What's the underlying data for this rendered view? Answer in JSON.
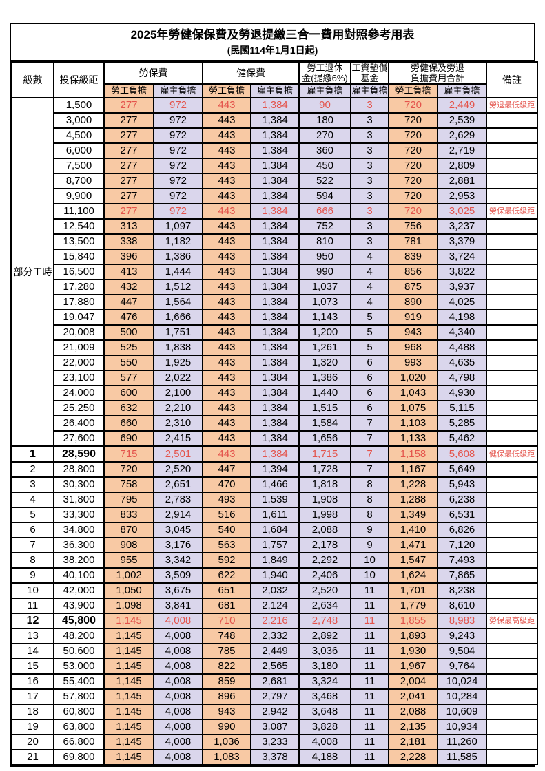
{
  "page": {
    "title": "2025年勞健保保費及勞退提繳三合一費用對照參考用表",
    "subtitle": "(民國114年1月1日起)"
  },
  "colors": {
    "employee_column_bg": "#F8C9A4",
    "employer_column_bg": "#DAD6EC",
    "highlight_text": "#E4544C",
    "grid_border": "#000000"
  },
  "table": {
    "header": {
      "level": "級數",
      "salary": "投保級距",
      "labor": "勞保費",
      "health": "健保費",
      "pension_line1": "勞工退休",
      "pension_line2": "金(提繳6%)",
      "fund_line1": "工資墊償",
      "fund_line2": "基金",
      "total_line1": "勞健保及勞退",
      "total_line2": "負擔費用合計",
      "note": "備註",
      "employee": "勞工負擔",
      "employer": "雇主負擔"
    },
    "part_time_label": "部分工時",
    "part_time_rowspan": 23,
    "rows": [
      {
        "c": [
          "",
          "1,500",
          "277",
          "972",
          "443",
          "1,384",
          "90",
          "3",
          "720",
          "2,449"
        ],
        "note": "勞退最低級距",
        "red": true
      },
      {
        "c": [
          "",
          "3,000",
          "277",
          "972",
          "443",
          "1,384",
          "180",
          "3",
          "720",
          "2,539"
        ]
      },
      {
        "c": [
          "",
          "4,500",
          "277",
          "972",
          "443",
          "1,384",
          "270",
          "3",
          "720",
          "2,629"
        ]
      },
      {
        "c": [
          "",
          "6,000",
          "277",
          "972",
          "443",
          "1,384",
          "360",
          "3",
          "720",
          "2,719"
        ]
      },
      {
        "c": [
          "",
          "7,500",
          "277",
          "972",
          "443",
          "1,384",
          "450",
          "3",
          "720",
          "2,809"
        ]
      },
      {
        "c": [
          "",
          "8,700",
          "277",
          "972",
          "443",
          "1,384",
          "522",
          "3",
          "720",
          "2,881"
        ]
      },
      {
        "c": [
          "",
          "9,900",
          "277",
          "972",
          "443",
          "1,384",
          "594",
          "3",
          "720",
          "2,953"
        ]
      },
      {
        "c": [
          "",
          "11,100",
          "277",
          "972",
          "443",
          "1,384",
          "666",
          "3",
          "720",
          "3,025"
        ],
        "note": "勞保最低級距",
        "red": true
      },
      {
        "c": [
          "",
          "12,540",
          "313",
          "1,097",
          "443",
          "1,384",
          "752",
          "3",
          "756",
          "3,237"
        ]
      },
      {
        "c": [
          "",
          "13,500",
          "338",
          "1,182",
          "443",
          "1,384",
          "810",
          "3",
          "781",
          "3,379"
        ]
      },
      {
        "c": [
          "",
          "15,840",
          "396",
          "1,386",
          "443",
          "1,384",
          "950",
          "4",
          "839",
          "3,724"
        ]
      },
      {
        "c": [
          "",
          "16,500",
          "413",
          "1,444",
          "443",
          "1,384",
          "990",
          "4",
          "856",
          "3,822"
        ]
      },
      {
        "c": [
          "",
          "17,280",
          "432",
          "1,512",
          "443",
          "1,384",
          "1,037",
          "4",
          "875",
          "3,937"
        ]
      },
      {
        "c": [
          "",
          "17,880",
          "447",
          "1,564",
          "443",
          "1,384",
          "1,073",
          "4",
          "890",
          "4,025"
        ]
      },
      {
        "c": [
          "",
          "19,047",
          "476",
          "1,666",
          "443",
          "1,384",
          "1,143",
          "5",
          "919",
          "4,198"
        ]
      },
      {
        "c": [
          "",
          "20,008",
          "500",
          "1,751",
          "443",
          "1,384",
          "1,200",
          "5",
          "943",
          "4,340"
        ]
      },
      {
        "c": [
          "",
          "21,009",
          "525",
          "1,838",
          "443",
          "1,384",
          "1,261",
          "5",
          "968",
          "4,488"
        ]
      },
      {
        "c": [
          "",
          "22,000",
          "550",
          "1,925",
          "443",
          "1,384",
          "1,320",
          "6",
          "993",
          "4,635"
        ]
      },
      {
        "c": [
          "",
          "23,100",
          "577",
          "2,022",
          "443",
          "1,384",
          "1,386",
          "6",
          "1,020",
          "4,798"
        ]
      },
      {
        "c": [
          "",
          "24,000",
          "600",
          "2,100",
          "443",
          "1,384",
          "1,440",
          "6",
          "1,043",
          "4,930"
        ]
      },
      {
        "c": [
          "",
          "25,250",
          "632",
          "2,210",
          "443",
          "1,384",
          "1,515",
          "6",
          "1,075",
          "5,115"
        ]
      },
      {
        "c": [
          "",
          "26,400",
          "660",
          "2,310",
          "443",
          "1,384",
          "1,584",
          "7",
          "1,103",
          "5,285"
        ]
      },
      {
        "c": [
          "",
          "27,600",
          "690",
          "2,415",
          "443",
          "1,384",
          "1,656",
          "7",
          "1,133",
          "5,462"
        ]
      },
      {
        "c": [
          "1",
          "28,590",
          "715",
          "2,501",
          "443",
          "1,384",
          "1,715",
          "7",
          "1,158",
          "5,608"
        ],
        "note": "健保最低級距",
        "red": true,
        "bold": true,
        "thick": true
      },
      {
        "c": [
          "2",
          "28,800",
          "720",
          "2,520",
          "447",
          "1,394",
          "1,728",
          "7",
          "1,167",
          "5,649"
        ]
      },
      {
        "c": [
          "3",
          "30,300",
          "758",
          "2,651",
          "470",
          "1,466",
          "1,818",
          "8",
          "1,228",
          "5,943"
        ]
      },
      {
        "c": [
          "4",
          "31,800",
          "795",
          "2,783",
          "493",
          "1,539",
          "1,908",
          "8",
          "1,288",
          "6,238"
        ]
      },
      {
        "c": [
          "5",
          "33,300",
          "833",
          "2,914",
          "516",
          "1,611",
          "1,998",
          "8",
          "1,349",
          "6,531"
        ]
      },
      {
        "c": [
          "6",
          "34,800",
          "870",
          "3,045",
          "540",
          "1,684",
          "2,088",
          "9",
          "1,410",
          "6,826"
        ]
      },
      {
        "c": [
          "7",
          "36,300",
          "908",
          "3,176",
          "563",
          "1,757",
          "2,178",
          "9",
          "1,471",
          "7,120"
        ]
      },
      {
        "c": [
          "8",
          "38,200",
          "955",
          "3,342",
          "592",
          "1,849",
          "2,292",
          "10",
          "1,547",
          "7,493"
        ]
      },
      {
        "c": [
          "9",
          "40,100",
          "1,002",
          "3,509",
          "622",
          "1,940",
          "2,406",
          "10",
          "1,624",
          "7,865"
        ]
      },
      {
        "c": [
          "10",
          "42,000",
          "1,050",
          "3,675",
          "651",
          "2,032",
          "2,520",
          "11",
          "1,701",
          "8,238"
        ]
      },
      {
        "c": [
          "11",
          "43,900",
          "1,098",
          "3,841",
          "681",
          "2,124",
          "2,634",
          "11",
          "1,779",
          "8,610"
        ]
      },
      {
        "c": [
          "12",
          "45,800",
          "1,145",
          "4,008",
          "710",
          "2,216",
          "2,748",
          "11",
          "1,855",
          "8,983"
        ],
        "note": "勞保最高級距",
        "red": true,
        "bold": true
      },
      {
        "c": [
          "13",
          "48,200",
          "1,145",
          "4,008",
          "748",
          "2,332",
          "2,892",
          "11",
          "1,893",
          "9,243"
        ]
      },
      {
        "c": [
          "14",
          "50,600",
          "1,145",
          "4,008",
          "785",
          "2,449",
          "3,036",
          "11",
          "1,930",
          "9,504"
        ]
      },
      {
        "c": [
          "15",
          "53,000",
          "1,145",
          "4,008",
          "822",
          "2,565",
          "3,180",
          "11",
          "1,967",
          "9,764"
        ]
      },
      {
        "c": [
          "16",
          "55,400",
          "1,145",
          "4,008",
          "859",
          "2,681",
          "3,324",
          "11",
          "2,004",
          "10,024"
        ]
      },
      {
        "c": [
          "17",
          "57,800",
          "1,145",
          "4,008",
          "896",
          "2,797",
          "3,468",
          "11",
          "2,041",
          "10,284"
        ]
      },
      {
        "c": [
          "18",
          "60,800",
          "1,145",
          "4,008",
          "943",
          "2,942",
          "3,648",
          "11",
          "2,088",
          "10,609"
        ]
      },
      {
        "c": [
          "19",
          "63,800",
          "1,145",
          "4,008",
          "990",
          "3,087",
          "3,828",
          "11",
          "2,135",
          "10,934"
        ]
      },
      {
        "c": [
          "20",
          "66,800",
          "1,145",
          "4,008",
          "1,036",
          "3,233",
          "4,008",
          "11",
          "2,181",
          "11,260"
        ]
      },
      {
        "c": [
          "21",
          "69,800",
          "1,145",
          "4,008",
          "1,083",
          "3,378",
          "4,188",
          "11",
          "2,228",
          "11,585"
        ]
      }
    ]
  }
}
